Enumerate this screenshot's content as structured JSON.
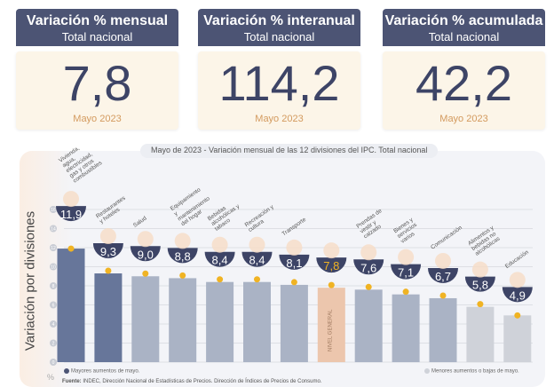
{
  "cards": [
    {
      "title": "Variación % mensual",
      "subtitle": "Total nacional",
      "value": "7,8",
      "month": "Mayo 2023"
    },
    {
      "title": "Variación % interanual",
      "subtitle": "Total nacional",
      "value": "114,2",
      "month": "Mayo 2023"
    },
    {
      "title": "Variación % acumulada",
      "subtitle": "Total nacional",
      "value": "42,2",
      "month": "Mayo 2023"
    }
  ],
  "chart_data": {
    "type": "bar",
    "title": "Mayo de 2023 - Variación mensual de las 12 divisiones del IPC. Total nacional",
    "ylabel": "Variación por divisiones",
    "yunit": "%",
    "ylim": [
      0,
      16
    ],
    "yticks": [
      0,
      2,
      4,
      6,
      8,
      10,
      12,
      14,
      16
    ],
    "grid": true,
    "categories": [
      "Vivienda, agua, electricidad, gas y otros combustibles",
      "Restaurantes y hoteles",
      "Salud",
      "Equipamiento y mantenimiento del hogar",
      "Bebidas alcohólicas y tabaco",
      "Recreación y cultura",
      "Transporte",
      "NIVEL GENERAL",
      "Prendas de vestir y calzado",
      "Bienes y servicios varios",
      "Comunicación",
      "Alimentos y bebidas no alcohólicas",
      "Educación"
    ],
    "values": [
      11.9,
      9.3,
      9.0,
      8.8,
      8.4,
      8.4,
      8.1,
      7.8,
      7.6,
      7.1,
      6.7,
      5.8,
      4.9
    ],
    "labels": [
      "11,9",
      "9,3",
      "9,0",
      "8,8",
      "8,4",
      "8,4",
      "8,1",
      "7,8",
      "7,6",
      "7,1",
      "6,7",
      "5,8",
      "4,9"
    ],
    "groups": [
      "mayor",
      "mayor",
      "mid",
      "mid",
      "mid",
      "mid",
      "mid",
      "general",
      "mid",
      "mid",
      "mid",
      "menor",
      "menor"
    ],
    "colors": {
      "mayor": "#67769a",
      "mid": "#aab3c5",
      "general": "#ecc6ad",
      "menor": "#cfd2d9",
      "badge": "#3d4466",
      "marker": "#f0b323",
      "general_label": "#f0b323"
    },
    "legend": {
      "high": "Mayores aumentos de mayo.",
      "low": "Menores aumentos o bajas de mayo."
    }
  },
  "source_label": "Fuente:",
  "source": "INDEC, Dirección Nacional de Estadísticas de Precios. Dirección de Índices de Precios de Consumo."
}
